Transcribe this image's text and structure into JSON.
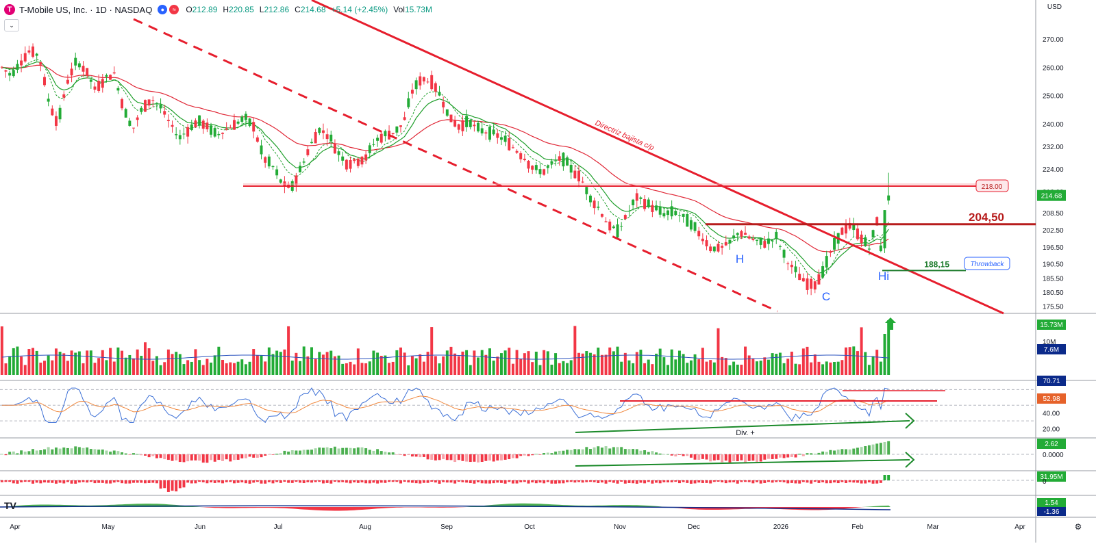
{
  "header": {
    "symbol": "T-Mobile US, Inc. · 1D · NASDAQ",
    "open_label": "O",
    "open": "212.89",
    "high_label": "H",
    "high": "220.85",
    "low_label": "L",
    "low": "212.86",
    "close_label": "C",
    "close": "214.68",
    "change": "+5.14 (+2.45%)",
    "vol_label": "Vol",
    "vol": "15.73M"
  },
  "currency": "USD",
  "colors": {
    "up": "#22ab36",
    "down": "#f23645",
    "ema_red": "#e02837",
    "ema_green": "#1e9e2a",
    "trend": "#e61e2d",
    "blue_text": "#2962ff",
    "rsi": "#3b6fd6",
    "rsi_ma": "#f0883e"
  },
  "chart_data": [
    {
      "type": "candlestick",
      "title": "T-Mobile US, Inc. · 1D · NASDAQ",
      "x_labels": [
        "Apr",
        "May",
        "Jun",
        "Jul",
        "Aug",
        "Sep",
        "Oct",
        "Nov",
        "Dec",
        "2026",
        "Feb",
        "Mar",
        "Apr"
      ],
      "y_ticks": [
        270,
        260,
        250,
        240,
        232,
        224,
        216,
        208.5,
        202.5,
        196.5,
        190.5,
        185.5,
        180.5,
        175.5
      ],
      "y_ticks_labels": [
        "270.00",
        "260.00",
        "250.00",
        "240.00",
        "232.00",
        "224.00",
        "216.00",
        "208.50",
        "202.50",
        "196.50",
        "190.50",
        "185.50",
        "180.50",
        "175.50"
      ],
      "ylim": [
        173,
        277
      ],
      "ohlc_path_closes": [
        260,
        257,
        262,
        266,
        264,
        248,
        240,
        255,
        262,
        259,
        252,
        256,
        258,
        246,
        238,
        245,
        249,
        246,
        240,
        235,
        238,
        241,
        239,
        236,
        238,
        240,
        242,
        239,
        228,
        225,
        219,
        217,
        224,
        232,
        238,
        236,
        230,
        226,
        227,
        228,
        234,
        236,
        237,
        240,
        252,
        256,
        255,
        250,
        242,
        239,
        241,
        238,
        237,
        236,
        234,
        231,
        228,
        224,
        223,
        226,
        228,
        224,
        221,
        214,
        210,
        204,
        202,
        208,
        214,
        212,
        210,
        208,
        209,
        207,
        204,
        200,
        196,
        196,
        198,
        202,
        200,
        198,
        198,
        200,
        192,
        188,
        184,
        183,
        188,
        196,
        202,
        204,
        200,
        196,
        209,
        214.68
      ],
      "last_price": "214.68",
      "levels": [
        {
          "label": "218.00",
          "value": 218.0
        },
        {
          "label": "204,50",
          "value": 204.5
        },
        {
          "label": "188,15",
          "value": 188.15
        }
      ],
      "annotations": [
        {
          "text": "Directriz bajista c/p"
        },
        {
          "text": "H"
        },
        {
          "text": "C"
        },
        {
          "text": "Hi"
        },
        {
          "text": "Throwback"
        }
      ]
    },
    {
      "type": "bar",
      "name": "volume",
      "last": "15.73M",
      "ma": "7.6M",
      "tick": "10M"
    },
    {
      "type": "line",
      "name": "RSI",
      "y_ticks_labels": [
        "60.00",
        "40.00",
        "20.00"
      ],
      "value": "70.71",
      "ma_value": "52.98",
      "annotation": "Div. +"
    },
    {
      "type": "bar",
      "name": "histogram-1",
      "value": "2.62",
      "tick": "0.0000"
    },
    {
      "type": "bar",
      "name": "histogram-2",
      "value": "31.95M",
      "tick": "0"
    },
    {
      "type": "area",
      "name": "oscillator",
      "value_a": "1.54",
      "value_b": "-1.36"
    }
  ]
}
